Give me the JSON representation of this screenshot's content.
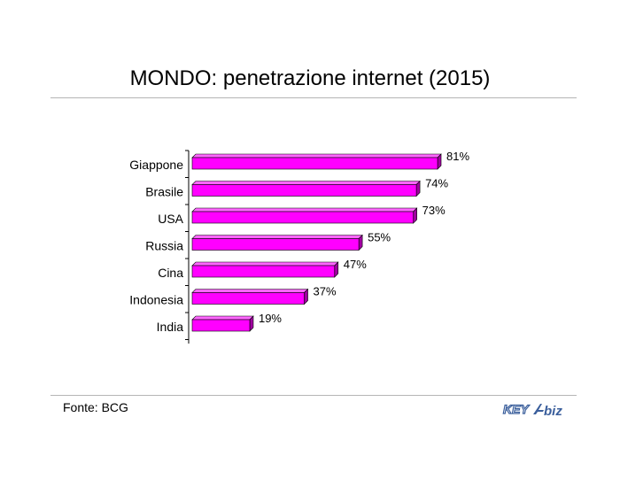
{
  "title": "MONDO: penetrazione internet (2015)",
  "source": "Fonte: BCG",
  "logo": {
    "part1": "KEY",
    "part2": "biz"
  },
  "colors": {
    "bar_front": "#ff00ff",
    "bar_top": "#ff66ff",
    "bar_side": "#a000a0",
    "rule": "#b5b5b5"
  },
  "chart_data": {
    "type": "bar",
    "orientation": "horizontal",
    "title": "MONDO: penetrazione internet (2015)",
    "categories": [
      "Giappone",
      "Brasile",
      "USA",
      "Russia",
      "Cina",
      "Indonesia",
      "India"
    ],
    "values": [
      81,
      74,
      73,
      55,
      47,
      37,
      19
    ],
    "value_labels": [
      "81%",
      "74%",
      "73%",
      "55%",
      "47%",
      "37%",
      "19%"
    ],
    "unit": "%",
    "xlim": [
      0,
      100
    ],
    "grid": false,
    "legend": "none"
  }
}
